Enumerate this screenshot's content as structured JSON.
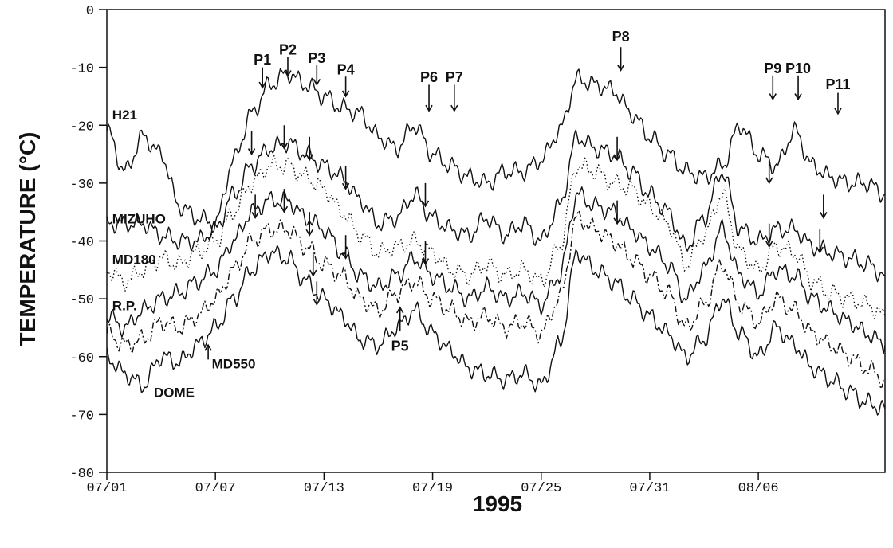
{
  "chart_data": {
    "type": "line",
    "title": "",
    "xlabel": "1995",
    "ylabel": "TEMPERATURE (°C)",
    "ylim": [
      -80,
      0
    ],
    "xlim": [
      0,
      43
    ],
    "x_tick_positions": [
      0,
      6,
      12,
      18,
      24,
      30,
      36
    ],
    "x_tick_labels": [
      "07/01",
      "07/07",
      "07/13",
      "07/19",
      "07/25",
      "07/31",
      "08/06"
    ],
    "y_ticks": [
      0,
      -10,
      -20,
      -30,
      -40,
      -50,
      -60,
      -70,
      -80
    ],
    "grid": false,
    "legend": "inline labels",
    "series": [
      {
        "name": "H21",
        "style": "solid",
        "x": [
          0,
          1,
          2,
          3,
          4,
          5,
          6,
          7,
          8,
          9,
          10,
          11,
          12,
          13,
          14,
          15,
          16,
          17,
          18,
          19,
          20,
          21,
          22,
          23,
          24,
          25,
          26,
          27,
          28,
          29,
          30,
          31,
          32,
          33,
          34,
          35,
          36,
          37,
          38,
          39,
          40,
          41,
          42,
          43
        ],
        "y": [
          -21,
          -28,
          -22,
          -25,
          -34,
          -36,
          -37,
          -26,
          -18,
          -13,
          -11,
          -13,
          -15,
          -17,
          -18,
          -22,
          -24,
          -20,
          -25,
          -27,
          -29,
          -30,
          -28,
          -28,
          -26,
          -21,
          -12,
          -13,
          -14,
          -18,
          -22,
          -25,
          -28,
          -29,
          -27,
          -20,
          -25,
          -27,
          -21,
          -27,
          -29,
          -30,
          -30,
          -32
        ]
      },
      {
        "name": "MIZUHO",
        "style": "solid",
        "x": [
          0,
          1,
          2,
          3,
          4,
          5,
          6,
          7,
          8,
          9,
          10,
          11,
          12,
          13,
          14,
          15,
          16,
          17,
          18,
          19,
          20,
          21,
          22,
          23,
          24,
          25,
          26,
          27,
          28,
          29,
          30,
          31,
          32,
          33,
          34,
          35,
          36,
          37,
          38,
          39,
          40,
          41,
          42,
          43
        ],
        "y": [
          -37,
          -37,
          -37,
          -39,
          -40,
          -40,
          -38,
          -32,
          -27,
          -24,
          -23,
          -25,
          -27,
          -29,
          -33,
          -37,
          -36,
          -32,
          -36,
          -38,
          -39,
          -36,
          -39,
          -37,
          -40,
          -34,
          -22,
          -24,
          -25,
          -28,
          -32,
          -35,
          -41,
          -36,
          -28,
          -38,
          -40,
          -38,
          -38,
          -41,
          -42,
          -43,
          -44,
          -46
        ]
      },
      {
        "name": "MD180",
        "style": "dotted",
        "x": [
          0,
          1,
          2,
          3,
          4,
          5,
          6,
          7,
          8,
          9,
          10,
          11,
          12,
          13,
          14,
          15,
          16,
          17,
          18,
          19,
          20,
          21,
          22,
          23,
          24,
          25,
          26,
          27,
          28,
          29,
          30,
          31,
          32,
          33,
          34,
          35,
          36,
          37,
          38,
          39,
          40,
          41,
          42,
          43
        ],
        "y": [
          -45,
          -47,
          -45,
          -43,
          -44,
          -42,
          -40,
          -35,
          -30,
          -27,
          -27,
          -29,
          -31,
          -35,
          -39,
          -42,
          -41,
          -40,
          -42,
          -45,
          -46,
          -44,
          -46,
          -45,
          -47,
          -41,
          -27,
          -28,
          -30,
          -31,
          -34,
          -37,
          -44,
          -39,
          -32,
          -42,
          -45,
          -41,
          -42,
          -47,
          -49,
          -50,
          -51,
          -53
        ]
      },
      {
        "name": "R.P.",
        "style": "solid",
        "x": [
          0,
          1,
          2,
          3,
          4,
          5,
          6,
          7,
          8,
          9,
          10,
          11,
          12,
          13,
          14,
          15,
          16,
          17,
          18,
          19,
          20,
          21,
          22,
          23,
          24,
          25,
          26,
          27,
          28,
          29,
          30,
          31,
          32,
          33,
          34,
          35,
          36,
          37,
          38,
          39,
          40,
          41,
          42,
          43
        ],
        "y": [
          -53,
          -55,
          -52,
          -50,
          -49,
          -47,
          -45,
          -40,
          -35,
          -33,
          -33,
          -36,
          -38,
          -42,
          -46,
          -48,
          -46,
          -43,
          -46,
          -48,
          -50,
          -48,
          -50,
          -49,
          -51,
          -46,
          -32,
          -34,
          -35,
          -38,
          -41,
          -44,
          -50,
          -45,
          -38,
          -46,
          -49,
          -45,
          -46,
          -50,
          -52,
          -54,
          -56,
          -58
        ]
      },
      {
        "name": "MD550",
        "style": "dashdot",
        "x": [
          0,
          1,
          2,
          3,
          4,
          5,
          6,
          7,
          8,
          9,
          10,
          11,
          12,
          13,
          14,
          15,
          16,
          17,
          18,
          19,
          20,
          21,
          22,
          23,
          24,
          25,
          26,
          27,
          28,
          29,
          30,
          31,
          32,
          33,
          34,
          35,
          36,
          37,
          38,
          39,
          40,
          41,
          42,
          43
        ],
        "y": [
          -56,
          -58,
          -57,
          -54,
          -55,
          -53,
          -50,
          -45,
          -40,
          -38,
          -38,
          -41,
          -44,
          -46,
          -50,
          -52,
          -49,
          -47,
          -50,
          -52,
          -54,
          -53,
          -55,
          -54,
          -56,
          -50,
          -36,
          -38,
          -40,
          -43,
          -46,
          -49,
          -55,
          -51,
          -44,
          -51,
          -54,
          -50,
          -52,
          -56,
          -58,
          -60,
          -62,
          -64
        ]
      },
      {
        "name": "DOME",
        "style": "solid",
        "x": [
          0,
          1,
          2,
          3,
          4,
          5,
          6,
          7,
          8,
          9,
          10,
          11,
          12,
          13,
          14,
          15,
          16,
          17,
          18,
          19,
          20,
          21,
          22,
          23,
          24,
          25,
          26,
          27,
          28,
          29,
          30,
          31,
          32,
          33,
          34,
          35,
          36,
          37,
          38,
          39,
          40,
          41,
          42,
          43
        ],
        "y": [
          -60,
          -63,
          -65,
          -60,
          -61,
          -58,
          -55,
          -50,
          -45,
          -42,
          -43,
          -47,
          -50,
          -53,
          -57,
          -58,
          -55,
          -52,
          -56,
          -59,
          -62,
          -63,
          -64,
          -63,
          -65,
          -58,
          -42,
          -45,
          -47,
          -50,
          -53,
          -56,
          -60,
          -57,
          -50,
          -56,
          -60,
          -55,
          -58,
          -62,
          -64,
          -66,
          -68,
          -69
        ]
      }
    ],
    "series_labels": [
      {
        "text": "H21",
        "x": 0.3,
        "y": -19
      },
      {
        "text": "MIZUHO",
        "x": 0.3,
        "y": -37
      },
      {
        "text": "MD180",
        "x": 0.3,
        "y": -44
      },
      {
        "text": "R.P.",
        "x": 0.3,
        "y": -52
      },
      {
        "text": "MD550",
        "x": 5.8,
        "y": -62
      },
      {
        "text": "DOME",
        "x": 2.6,
        "y": -67
      }
    ],
    "annotations": [
      {
        "text": "P1",
        "x": 8.6,
        "y": -9.5
      },
      {
        "text": "P2",
        "x": 10.0,
        "y": -7.8
      },
      {
        "text": "P3",
        "x": 11.6,
        "y": -9.2
      },
      {
        "text": "P4",
        "x": 13.2,
        "y": -11.2
      },
      {
        "text": "P6",
        "x": 17.8,
        "y": -12.5
      },
      {
        "text": "P7",
        "x": 19.2,
        "y": -12.5
      },
      {
        "text": "P8",
        "x": 28.4,
        "y": -5.5
      },
      {
        "text": "P9",
        "x": 36.8,
        "y": -11.0
      },
      {
        "text": "P10",
        "x": 38.2,
        "y": -11.0
      },
      {
        "text": "P11",
        "x": 40.4,
        "y": -13.8
      },
      {
        "text": "P5",
        "x": 16.2,
        "y": -59.0
      }
    ],
    "peak_arrows": [
      {
        "x": 8.6,
        "y_from": -10.0,
        "y_to": -13.5
      },
      {
        "x": 10.0,
        "y_from": -8.2,
        "y_to": -11.5
      },
      {
        "x": 11.6,
        "y_from": -9.6,
        "y_to": -13.0
      },
      {
        "x": 13.2,
        "y_from": -11.6,
        "y_to": -15.0
      },
      {
        "x": 17.8,
        "y_from": -13.0,
        "y_to": -17.5
      },
      {
        "x": 19.2,
        "y_from": -13.0,
        "y_to": -17.5
      },
      {
        "x": 28.4,
        "y_from": -6.5,
        "y_to": -10.5
      },
      {
        "x": 36.8,
        "y_from": -11.4,
        "y_to": -15.5
      },
      {
        "x": 38.2,
        "y_from": -11.4,
        "y_to": -15.5
      },
      {
        "x": 40.4,
        "y_from": -14.4,
        "y_to": -18.0
      },
      {
        "x": 8.0,
        "y_from": -21.0,
        "y_to": -25.0
      },
      {
        "x": 9.8,
        "y_from": -20.0,
        "y_to": -24.0
      },
      {
        "x": 11.2,
        "y_from": -22.0,
        "y_to": -26.0
      },
      {
        "x": 13.2,
        "y_from": -27.0,
        "y_to": -31.0
      },
      {
        "x": 17.6,
        "y_from": -30.0,
        "y_to": -34.0
      },
      {
        "x": 28.2,
        "y_from": -22.0,
        "y_to": -26.0
      },
      {
        "x": 36.6,
        "y_from": -26.0,
        "y_to": -30.0
      },
      {
        "x": 39.6,
        "y_from": -32.0,
        "y_to": -36.0
      },
      {
        "x": 8.2,
        "y_from": -32.0,
        "y_to": -36.0
      },
      {
        "x": 9.8,
        "y_from": -31.0,
        "y_to": -35.0
      },
      {
        "x": 11.2,
        "y_from": -35.0,
        "y_to": -39.0
      },
      {
        "x": 13.2,
        "y_from": -39.0,
        "y_to": -43.0
      },
      {
        "x": 17.6,
        "y_from": -40.0,
        "y_to": -44.0
      },
      {
        "x": 28.2,
        "y_from": -33.0,
        "y_to": -37.0
      },
      {
        "x": 36.6,
        "y_from": -37.0,
        "y_to": -41.0
      },
      {
        "x": 39.4,
        "y_from": -38.0,
        "y_to": -42.0
      },
      {
        "x": 11.4,
        "y_from": -42.0,
        "y_to": -46.0
      },
      {
        "x": 11.6,
        "y_from": -47.0,
        "y_to": -51.0
      },
      {
        "x": 16.2,
        "y_from": -55.5,
        "y_to": -51.5
      },
      {
        "x": 5.6,
        "y_from": -60.5,
        "y_to": -58.0
      }
    ]
  }
}
